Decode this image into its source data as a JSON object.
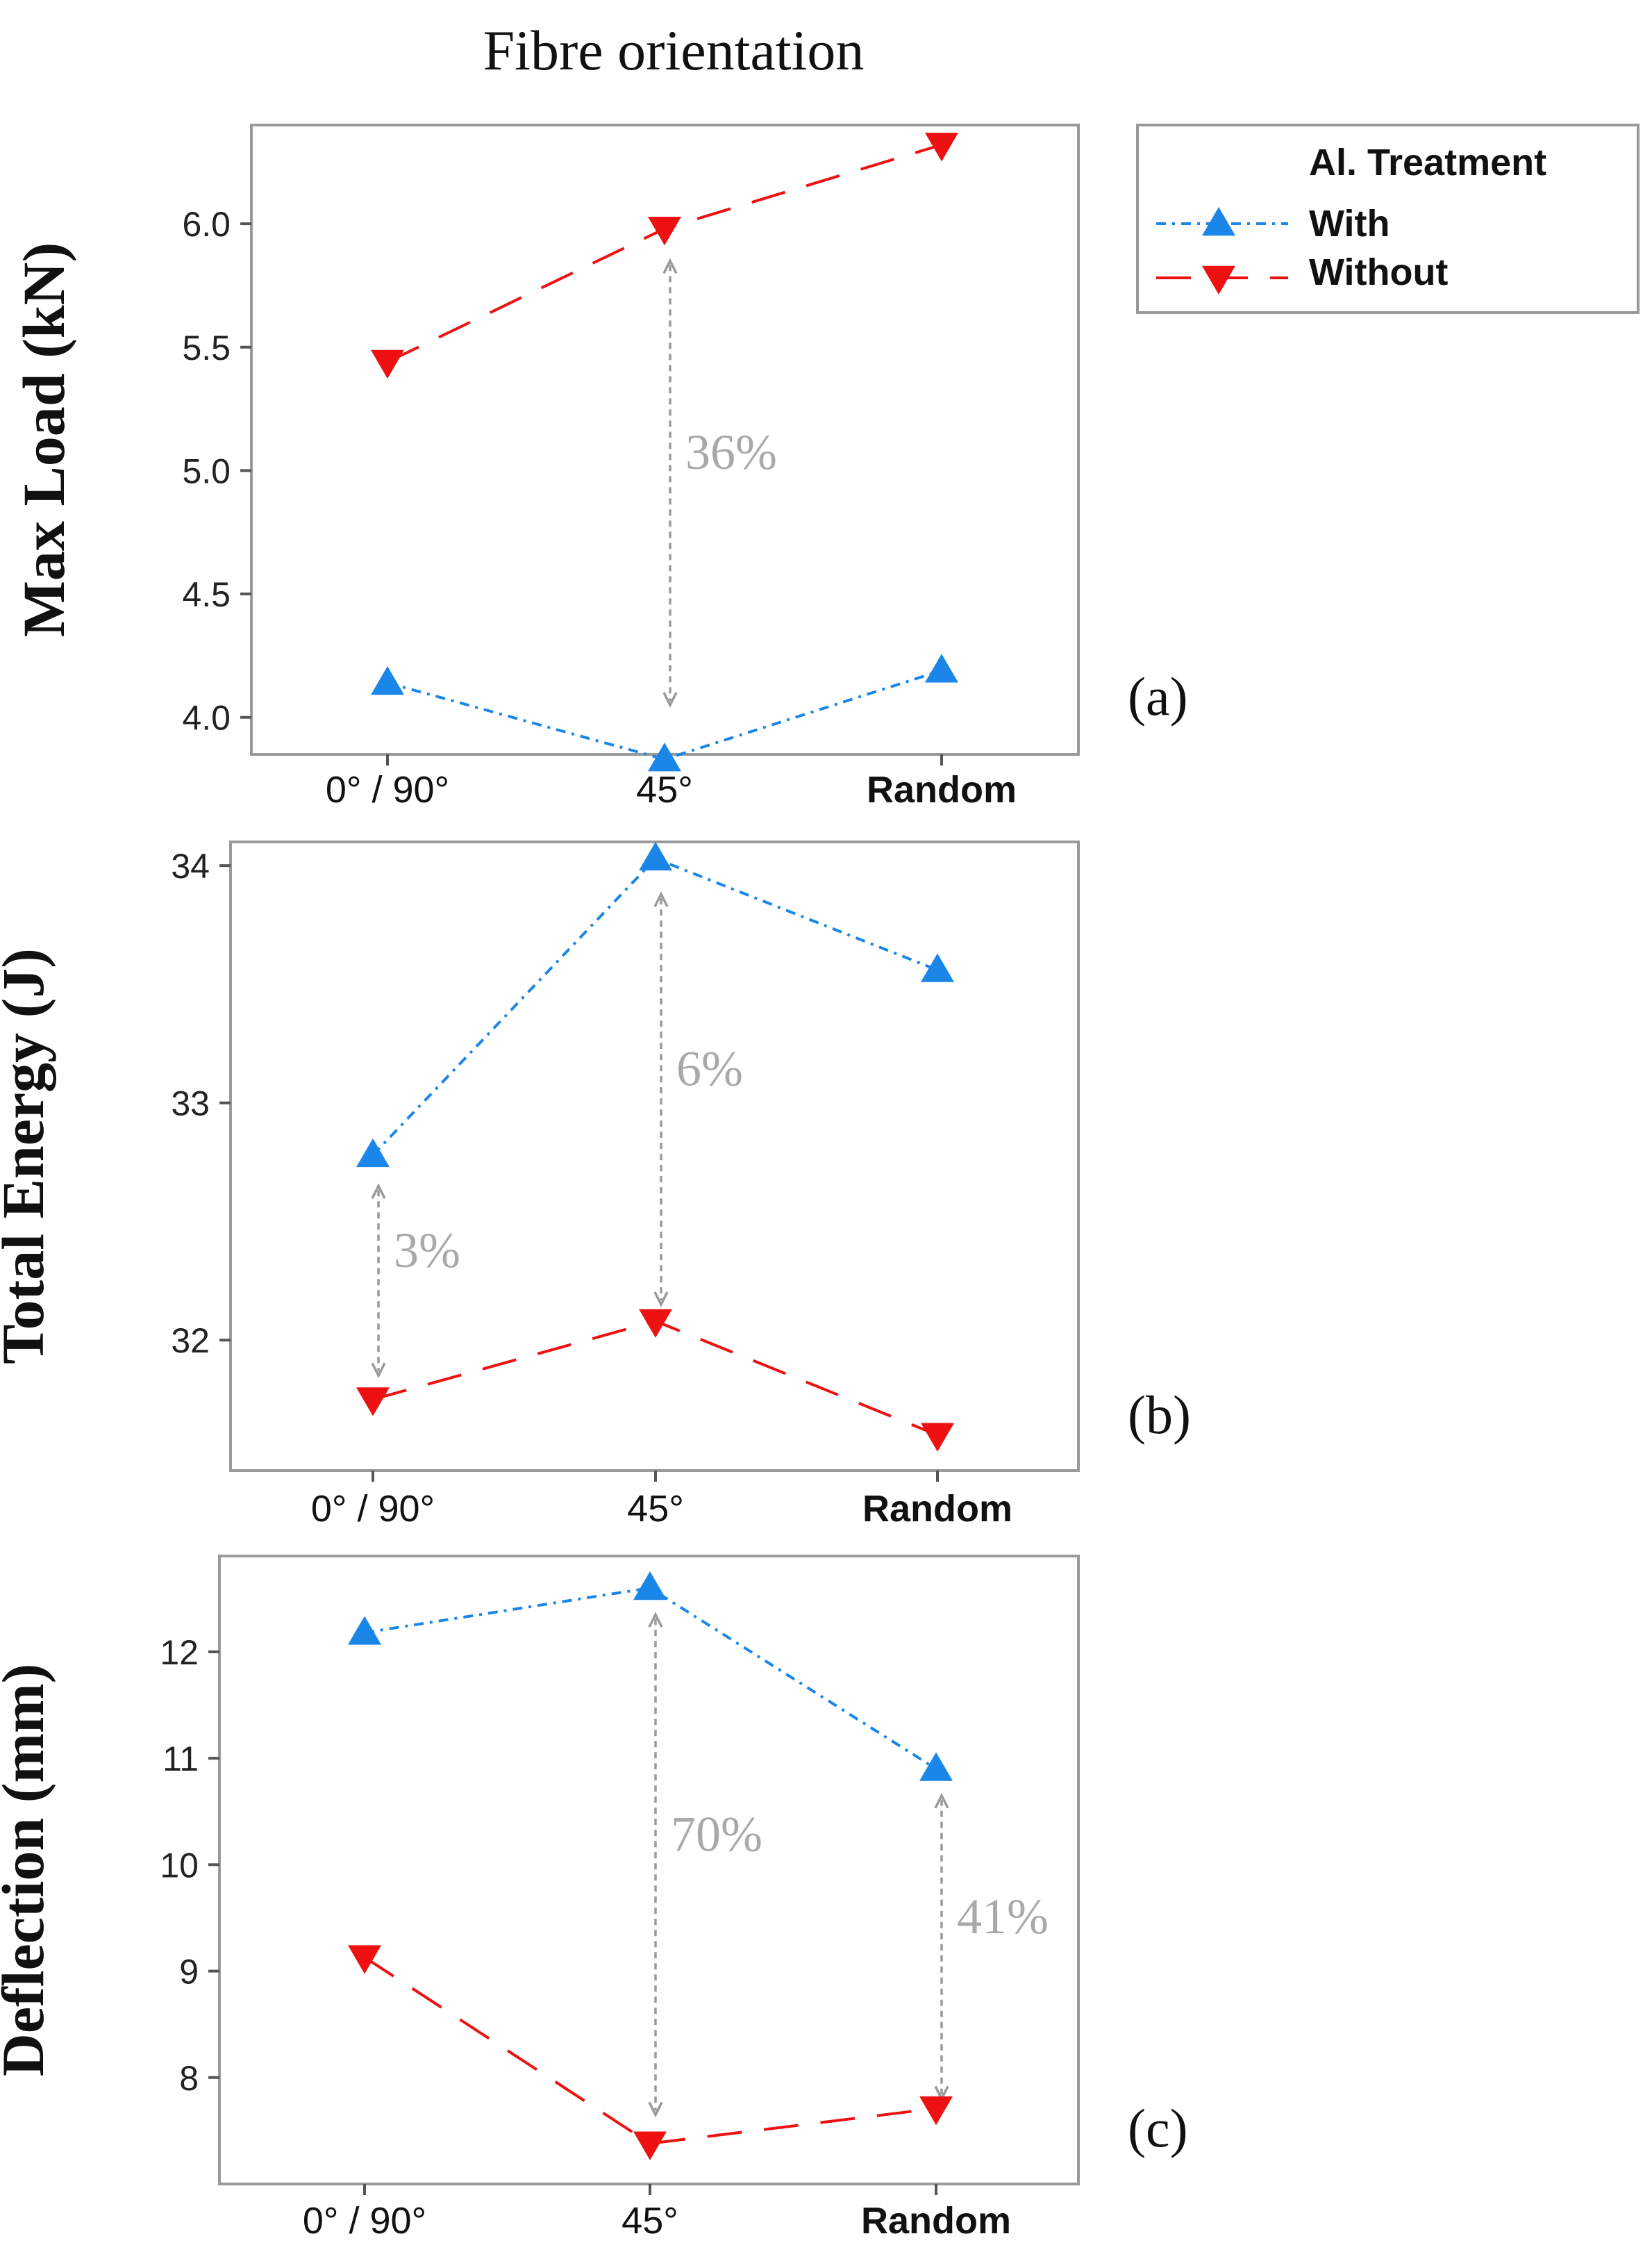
{
  "figure_title": "Fibre orientation",
  "legend": {
    "title": "Al. Treatment",
    "entries": [
      {
        "label": "With",
        "color": "#1a86e8"
      },
      {
        "label": "Without",
        "color": "#ee1111"
      }
    ]
  },
  "chart_data": [
    {
      "type": "line",
      "panel_label": "(a)",
      "ylabel": "Max Load (kN)",
      "categories": [
        "0° / 90°",
        "45°",
        "Random"
      ],
      "yticks": [
        "4.0",
        "4.5",
        "5.0",
        "5.5",
        "6.0"
      ],
      "ylim": [
        3.85,
        6.4
      ],
      "series": [
        {
          "name": "With",
          "values": [
            4.14,
            3.83,
            4.19
          ]
        },
        {
          "name": "Without",
          "values": [
            5.44,
            5.98,
            6.32
          ]
        }
      ],
      "annotations": [
        {
          "text": "36%",
          "category_index": 1,
          "from": 4.05,
          "to": 5.85
        }
      ]
    },
    {
      "type": "line",
      "panel_label": "(b)",
      "ylabel": "Total Energy (J)",
      "categories": [
        "0° / 90°",
        "45°",
        "Random"
      ],
      "yticks": [
        "32",
        "33",
        "34"
      ],
      "ylim": [
        31.45,
        34.1
      ],
      "series": [
        {
          "name": "With",
          "values": [
            32.78,
            34.03,
            33.56
          ]
        },
        {
          "name": "Without",
          "values": [
            31.75,
            32.08,
            31.6
          ]
        }
      ],
      "annotations": [
        {
          "text": "3%",
          "category_index": 0,
          "from": 31.85,
          "to": 32.65
        },
        {
          "text": "6%",
          "category_index": 1,
          "from": 32.15,
          "to": 33.88
        }
      ]
    },
    {
      "type": "line",
      "panel_label": "(c)",
      "ylabel": "Deflection (mm)",
      "categories": [
        "0° / 90°",
        "45°",
        "Random"
      ],
      "yticks": [
        "8",
        "9",
        "10",
        "11",
        "12"
      ],
      "ylim": [
        7.0,
        12.9
      ],
      "series": [
        {
          "name": "With",
          "values": [
            12.18,
            12.6,
            10.9
          ]
        },
        {
          "name": "Without",
          "values": [
            9.13,
            7.38,
            7.71
          ]
        }
      ],
      "annotations": [
        {
          "text": "70%",
          "category_index": 1,
          "from": 7.65,
          "to": 12.35
        },
        {
          "text": "41%",
          "category_index": 2,
          "from": 7.8,
          "to": 10.65
        }
      ]
    }
  ]
}
